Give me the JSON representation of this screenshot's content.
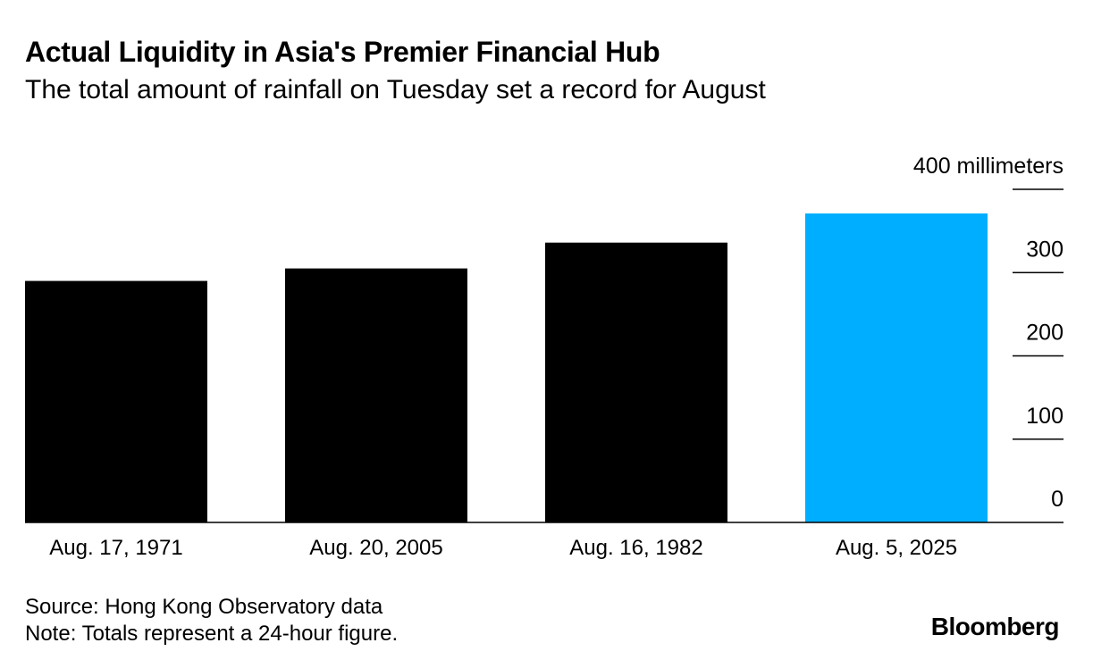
{
  "header": {
    "title": "Actual Liquidity in Asia's Premier Financial Hub",
    "subtitle": "The total amount of rainfall on Tuesday set a record for August"
  },
  "chart_data": {
    "type": "bar",
    "title": "Actual Liquidity in Asia's Premier Financial Hub",
    "subtitle": "The total amount of rainfall on Tuesday set a record for August",
    "categories": [
      "Aug. 17, 1971",
      "Aug. 20, 2005",
      "Aug. 16, 1982",
      "Aug. 5, 2025"
    ],
    "values": [
      290,
      305,
      336,
      371
    ],
    "colors": [
      "#000000",
      "#000000",
      "#000000",
      "#00aeff"
    ],
    "highlight_color": "#00aeff",
    "bar_color": "#000000",
    "ylim": [
      0,
      400
    ],
    "yticks": [
      {
        "value": 0,
        "label": "0"
      },
      {
        "value": 100,
        "label": "100"
      },
      {
        "value": 200,
        "label": "200"
      },
      {
        "value": 300,
        "label": "300"
      },
      {
        "value": 400,
        "label": "400 millimeters"
      }
    ],
    "y_axis_side": "right",
    "grid": false
  },
  "footer": {
    "source": "Source: Hong Kong Observatory data",
    "note": "Note: Totals represent a 24-hour figure.",
    "brand": "Bloomberg"
  }
}
